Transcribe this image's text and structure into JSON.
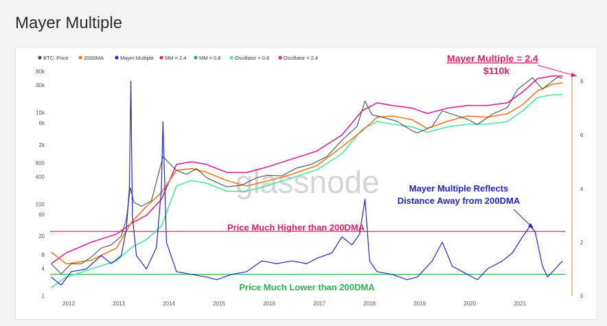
{
  "page_title": "Mayer Multiple",
  "watermark": "glassnode",
  "colors": {
    "price": "#4a4a4a",
    "dma": "#f07a1a",
    "mayer": "#2323c8",
    "mm24": "#e0206a",
    "mm08": "#2bb64a",
    "osc08": "#48e6a0",
    "osc24": "#e0209a"
  },
  "chart_data": {
    "type": "line",
    "legend": [
      "BTC: Price",
      "200DMA",
      "Mayer Multiple",
      "MM = 2.4",
      "MM = 0.8",
      "Oscillator = 0.8",
      "Oscillator = 2.4"
    ],
    "legend_position": "top-left",
    "x_ticks": [
      "2012",
      "2013",
      "2014",
      "2015",
      "2016",
      "2017",
      "2018",
      "2019",
      "2020",
      "2021"
    ],
    "y_left": {
      "scale": "log",
      "ticks": [
        "80k",
        "40k",
        "10k",
        "6k",
        "2k",
        "800",
        "400",
        "100",
        "60",
        "20",
        "8",
        "4",
        "1"
      ]
    },
    "y_right": {
      "scale": "linear",
      "ticks": [
        "8",
        "6",
        "4",
        "2",
        "0"
      ],
      "ylim": [
        0,
        8.5
      ]
    },
    "series": [
      {
        "name": "BTC: Price",
        "x": [
          2011.7,
          2011.9,
          2012.1,
          2012.3,
          2012.5,
          2012.7,
          2012.9,
          2013.1,
          2013.2,
          2013.28,
          2013.35,
          2013.5,
          2013.7,
          2013.85,
          2013.93,
          2014.05,
          2014.2,
          2014.4,
          2014.6,
          2014.8,
          2015.0,
          2015.2,
          2015.5,
          2015.8,
          2016.0,
          2016.3,
          2016.6,
          2016.9,
          2017.2,
          2017.5,
          2017.8,
          2017.96,
          2018.1,
          2018.3,
          2018.6,
          2018.9,
          2019.0,
          2019.3,
          2019.5,
          2019.8,
          2020.0,
          2020.2,
          2020.5,
          2020.8,
          2021.0,
          2021.3,
          2021.5,
          2021.8,
          2021.9
        ],
        "values": [
          5,
          3,
          5,
          5,
          7,
          11,
          13,
          20,
          47,
          230,
          110,
          90,
          120,
          500,
          1100,
          800,
          550,
          450,
          600,
          380,
          300,
          240,
          260,
          380,
          430,
          420,
          620,
          750,
          1100,
          2500,
          5000,
          18000,
          9000,
          8000,
          6500,
          4000,
          3600,
          5000,
          11000,
          8500,
          7200,
          5500,
          9300,
          13000,
          32000,
          58000,
          33000,
          60000,
          57000
        ]
      },
      {
        "name": "200DMA",
        "x": [
          2011.7,
          2012.0,
          2012.5,
          2013.0,
          2013.3,
          2013.6,
          2013.9,
          2014.2,
          2014.5,
          2014.8,
          2015.2,
          2015.6,
          2016.0,
          2016.5,
          2017.0,
          2017.5,
          2017.9,
          2018.2,
          2018.5,
          2018.9,
          2019.2,
          2019.6,
          2020.0,
          2020.4,
          2020.8,
          2021.1,
          2021.4,
          2021.7,
          2021.9
        ],
        "values": [
          9,
          5,
          6,
          11,
          40,
          90,
          180,
          550,
          600,
          500,
          330,
          250,
          320,
          450,
          700,
          1800,
          4000,
          8000,
          8500,
          7000,
          4500,
          6500,
          8500,
          8000,
          9500,
          15000,
          30000,
          42000,
          45000
        ]
      },
      {
        "name": "Mayer Multiple",
        "x": [
          2011.7,
          2011.9,
          2012.1,
          2012.4,
          2012.7,
          2012.9,
          2013.1,
          2013.2,
          2013.26,
          2013.29,
          2013.32,
          2013.4,
          2013.6,
          2013.8,
          2013.9,
          2013.93,
          2014.0,
          2014.2,
          2014.5,
          2014.8,
          2015.0,
          2015.3,
          2015.6,
          2015.9,
          2016.2,
          2016.5,
          2016.8,
          2017.0,
          2017.3,
          2017.5,
          2017.7,
          2017.85,
          2017.96,
          2018.05,
          2018.2,
          2018.5,
          2018.8,
          2019.0,
          2019.3,
          2019.5,
          2019.7,
          2019.9,
          2020.2,
          2020.4,
          2020.7,
          2020.9,
          2021.1,
          2021.25,
          2021.35,
          2021.5,
          2021.6,
          2021.75,
          2021.9
        ],
        "values": [
          0.7,
          0.4,
          0.9,
          1.0,
          1.5,
          1.2,
          1.5,
          2.5,
          4.0,
          8.0,
          3.0,
          1.5,
          1.0,
          1.8,
          4.0,
          6.5,
          2.0,
          0.9,
          0.8,
          0.7,
          0.6,
          0.8,
          0.9,
          1.3,
          1.2,
          1.3,
          1.2,
          1.4,
          1.6,
          2.2,
          1.9,
          2.3,
          3.6,
          1.3,
          0.9,
          0.8,
          0.6,
          0.7,
          1.3,
          2.0,
          1.1,
          0.9,
          0.6,
          1.0,
          1.3,
          1.6,
          2.2,
          2.6,
          2.4,
          1.1,
          0.7,
          1.0,
          1.3
        ]
      },
      {
        "name": "Oscillator = 2.4",
        "x": [
          2011.7,
          2012.0,
          2012.5,
          2013.0,
          2013.3,
          2013.6,
          2013.9,
          2014.2,
          2014.5,
          2014.8,
          2015.2,
          2015.6,
          2016.0,
          2016.5,
          2017.0,
          2017.5,
          2017.9,
          2018.2,
          2018.5,
          2018.9,
          2019.2,
          2019.6,
          2020.0,
          2020.4,
          2020.8,
          2021.1,
          2021.4,
          2021.7,
          2021.9
        ],
        "values": [
          1.2,
          1.6,
          2.0,
          2.3,
          2.7,
          3.0,
          3.6,
          4.9,
          5.0,
          4.9,
          4.6,
          4.6,
          4.8,
          5.1,
          5.4,
          6.0,
          6.9,
          7.2,
          7.1,
          7.0,
          6.8,
          7.0,
          7.1,
          7.1,
          7.2,
          7.6,
          8.1,
          8.2,
          8.2
        ]
      },
      {
        "name": "Oscillator = 0.8",
        "x": [
          2011.7,
          2012.0,
          2012.5,
          2013.0,
          2013.3,
          2013.6,
          2013.9,
          2014.2,
          2014.5,
          2014.8,
          2015.2,
          2015.6,
          2016.0,
          2016.5,
          2017.0,
          2017.5,
          2017.9,
          2018.2,
          2018.5,
          2018.9,
          2019.2,
          2019.6,
          2020.0,
          2020.4,
          2020.8,
          2021.1,
          2021.4,
          2021.7,
          2021.9
        ],
        "values": [
          0.3,
          0.7,
          1.0,
          1.3,
          1.8,
          2.1,
          2.6,
          4.1,
          4.3,
          4.2,
          3.9,
          3.9,
          4.1,
          4.4,
          4.7,
          5.3,
          6.2,
          6.5,
          6.4,
          6.3,
          6.1,
          6.3,
          6.4,
          6.4,
          6.5,
          6.9,
          7.4,
          7.5,
          7.5
        ]
      }
    ],
    "reference_lines": [
      {
        "name": "MM = 2.4",
        "value": 2.4
      },
      {
        "name": "MM = 0.8",
        "value": 0.8
      }
    ],
    "annotations": {
      "top_label_line1": "Mayer Multiple = 2.4",
      "top_label_line2": "$110k",
      "reflects_line1": "Mayer Multiple Reflects",
      "reflects_line2": "Distance Away from 200DMA",
      "higher": "Price Much Higher than 200DMA",
      "lower": "Price Much Lower than 200DMA"
    }
  }
}
